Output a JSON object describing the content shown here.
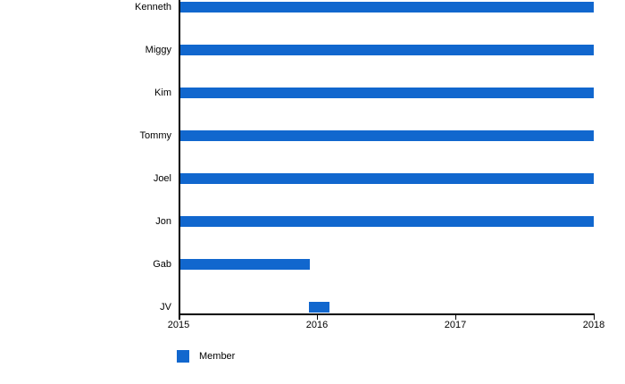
{
  "chart_data": {
    "type": "bar",
    "orientation": "horizontal",
    "title": "",
    "categories": [
      "Kenneth",
      "Miggy",
      "Kim",
      "Tommy",
      "Joel",
      "Jon",
      "Gab",
      "JV"
    ],
    "series": [
      {
        "name": "Member",
        "color": "#1167CE",
        "bars": [
          {
            "category": "Kenneth",
            "start": 2015.0,
            "end": 2018.0
          },
          {
            "category": "Miggy",
            "start": 2015.0,
            "end": 2018.0
          },
          {
            "category": "Kim",
            "start": 2015.0,
            "end": 2018.0
          },
          {
            "category": "Tommy",
            "start": 2015.0,
            "end": 2018.0
          },
          {
            "category": "Joel",
            "start": 2015.0,
            "end": 2018.0
          },
          {
            "category": "Jon",
            "start": 2015.0,
            "end": 2018.0
          },
          {
            "category": "Gab",
            "start": 2015.0,
            "end": 2015.95
          },
          {
            "category": "JV",
            "start": 2015.94,
            "end": 2016.09
          }
        ]
      }
    ],
    "x_axis": {
      "min": 2015,
      "max": 2018,
      "tick_labels": [
        "2015",
        "2016",
        "2017",
        "2018"
      ]
    },
    "legend": {
      "position": "bottom-left",
      "entries": [
        {
          "label": "Member",
          "color": "#1167CE"
        }
      ]
    },
    "grid": false,
    "background_color": "#ffffff",
    "axis_color": "#000000",
    "text_color": "#000000"
  }
}
